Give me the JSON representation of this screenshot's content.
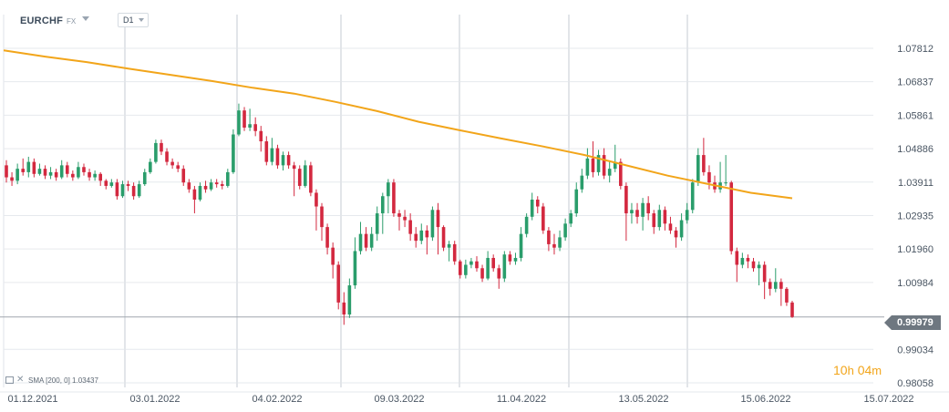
{
  "header": {
    "symbol": "EURCHF",
    "market": "FX",
    "timeframe": "D1"
  },
  "indicator": {
    "legend": "SMA [200,  0]  1.03437"
  },
  "countdown": {
    "hours": "10",
    "hours_unit": "h",
    "minutes": "04",
    "minutes_unit": "m"
  },
  "current_price": "0.99979",
  "colors": {
    "up": "#2a9d6b",
    "down": "#d3283f",
    "sma": "#f2a51a",
    "grid": "#e6e9ed",
    "price_line": "#a0a6ad",
    "price_tag": "#6e7780"
  },
  "chart_data": {
    "type": "candlestick",
    "symbol": "EURCHF",
    "timeframe": "D1",
    "ylim": [
      0.98058,
      1.08785
    ],
    "y_ticks": [
      "1.07812",
      "1.06837",
      "1.05861",
      "1.04886",
      "1.03911",
      "1.02935",
      "1.01960",
      "1.00984",
      "0.99034",
      "0.98058"
    ],
    "x_ticks": [
      "01.12.2021",
      "03.01.2022",
      "04.02.2022",
      "09.03.2022",
      "11.04.2022",
      "13.05.2022",
      "15.06.2022",
      "15.07.2022"
    ],
    "last_price": 0.99979,
    "indicator": {
      "name": "SMA",
      "period": 200,
      "shift": 0,
      "value": 1.03437
    },
    "sma_line": [
      1.0775,
      1.0757,
      1.0741,
      1.0722,
      1.0704,
      1.0686,
      1.0666,
      1.0649,
      1.0625,
      1.0598,
      1.0567,
      1.0542,
      1.0518,
      1.0495,
      1.047,
      1.044,
      1.041,
      1.0385,
      1.036,
      1.0344
    ],
    "candles": [
      [
        1.044,
        1.0405,
        1.0455,
        1.039
      ],
      [
        1.0405,
        1.0395,
        1.042,
        1.038
      ],
      [
        1.0395,
        1.043,
        1.0445,
        1.0385
      ],
      [
        1.043,
        1.042,
        1.046,
        1.041
      ],
      [
        1.042,
        1.045,
        1.0465,
        1.0405
      ],
      [
        1.045,
        1.0415,
        1.046,
        1.0405
      ],
      [
        1.0415,
        1.043,
        1.0445,
        1.041
      ],
      [
        1.043,
        1.041,
        1.044,
        1.04
      ],
      [
        1.041,
        1.042,
        1.0435,
        1.04
      ],
      [
        1.042,
        1.0405,
        1.043,
        1.0395
      ],
      [
        1.0405,
        1.044,
        1.0455,
        1.04
      ],
      [
        1.044,
        1.0415,
        1.045,
        1.0405
      ],
      [
        1.0415,
        1.0405,
        1.0425,
        1.0395
      ],
      [
        1.0405,
        1.0435,
        1.045,
        1.04
      ],
      [
        1.0435,
        1.042,
        1.0445,
        1.041
      ],
      [
        1.042,
        1.0405,
        1.043,
        1.0395
      ],
      [
        1.0405,
        1.0415,
        1.0425,
        1.0395
      ],
      [
        1.0415,
        1.0395,
        1.042,
        1.038
      ],
      [
        1.0395,
        1.038,
        1.04,
        1.037
      ],
      [
        1.038,
        1.039,
        1.04,
        1.0375
      ],
      [
        1.039,
        1.035,
        1.04,
        1.034
      ],
      [
        1.035,
        1.0385,
        1.0395,
        1.0345
      ],
      [
        1.0385,
        1.038,
        1.0395,
        1.0365
      ],
      [
        1.038,
        1.035,
        1.039,
        1.034
      ],
      [
        1.035,
        1.0385,
        1.0395,
        1.0345
      ],
      [
        1.0385,
        1.042,
        1.043,
        1.038
      ],
      [
        1.042,
        1.045,
        1.046,
        1.0415
      ],
      [
        1.045,
        1.0505,
        1.0515,
        1.0445
      ],
      [
        1.0505,
        1.048,
        1.0515,
        1.047
      ],
      [
        1.048,
        1.045,
        1.049,
        1.044
      ],
      [
        1.045,
        1.044,
        1.046,
        1.043
      ],
      [
        1.044,
        1.043,
        1.045,
        1.042
      ],
      [
        1.043,
        1.039,
        1.044,
        1.038
      ],
      [
        1.039,
        1.037,
        1.04,
        1.036
      ],
      [
        1.037,
        1.034,
        1.038,
        1.03
      ],
      [
        1.034,
        1.038,
        1.039,
        1.0335
      ],
      [
        1.038,
        1.037,
        1.0395,
        1.036
      ],
      [
        1.037,
        1.039,
        1.04,
        1.0365
      ],
      [
        1.039,
        1.0385,
        1.04,
        1.0375
      ],
      [
        1.0385,
        1.038,
        1.0395,
        1.037
      ],
      [
        1.038,
        1.042,
        1.043,
        1.0375
      ],
      [
        1.042,
        1.053,
        1.0545,
        1.0415
      ],
      [
        1.053,
        1.06,
        1.062,
        1.0525
      ],
      [
        1.06,
        1.055,
        1.061,
        1.054
      ],
      [
        1.055,
        1.056,
        1.0605,
        1.054
      ],
      [
        1.056,
        1.054,
        1.058,
        1.0525
      ],
      [
        1.054,
        1.051,
        1.0555,
        1.048
      ],
      [
        1.051,
        1.045,
        1.0525,
        1.044
      ],
      [
        1.045,
        1.049,
        1.052,
        1.044
      ],
      [
        1.049,
        1.044,
        1.05,
        1.043
      ],
      [
        1.044,
        1.047,
        1.048,
        1.0425
      ],
      [
        1.047,
        1.044,
        1.048,
        1.043
      ],
      [
        1.044,
        1.043,
        1.045,
        1.035
      ],
      [
        1.043,
        1.038,
        1.044,
        1.037
      ],
      [
        1.038,
        1.044,
        1.0455,
        1.0375
      ],
      [
        1.044,
        1.036,
        1.045,
        1.035
      ],
      [
        1.036,
        1.032,
        1.037,
        1.025
      ],
      [
        1.032,
        1.026,
        1.033,
        1.022
      ],
      [
        1.026,
        1.02,
        1.027,
        1.018
      ],
      [
        1.02,
        1.015,
        1.0215,
        1.011
      ],
      [
        1.015,
        1.004,
        1.016,
        1.002
      ],
      [
        1.004,
        1.0005,
        1.007,
        0.9975
      ],
      [
        1.0005,
        1.009,
        1.011,
        0.9995
      ],
      [
        1.009,
        1.019,
        1.023,
        1.008
      ],
      [
        1.019,
        1.024,
        1.0275,
        1.018
      ],
      [
        1.024,
        1.02,
        1.026,
        1.019
      ],
      [
        1.02,
        1.024,
        1.026,
        1.019
      ],
      [
        1.024,
        1.03,
        1.032,
        1.022
      ],
      [
        1.03,
        1.035,
        1.036,
        1.024
      ],
      [
        1.035,
        1.039,
        1.04,
        1.03
      ],
      [
        1.039,
        1.03,
        1.04,
        1.029
      ],
      [
        1.03,
        1.029,
        1.031,
        1.025
      ],
      [
        1.029,
        1.028,
        1.031,
        1.026
      ],
      [
        1.028,
        1.024,
        1.03,
        1.022
      ],
      [
        1.024,
        1.022,
        1.026,
        1.02
      ],
      [
        1.022,
        1.025,
        1.027,
        1.021
      ],
      [
        1.025,
        1.023,
        1.0265,
        1.018
      ],
      [
        1.023,
        1.031,
        1.032,
        1.022
      ],
      [
        1.031,
        1.026,
        1.033,
        1.018
      ],
      [
        1.026,
        1.02,
        1.0265,
        1.019
      ],
      [
        1.02,
        1.021,
        1.022,
        1.016
      ],
      [
        1.021,
        1.016,
        1.022,
        1.015
      ],
      [
        1.016,
        1.012,
        1.0165,
        1.011
      ],
      [
        1.012,
        1.015,
        1.0165,
        1.011
      ],
      [
        1.015,
        1.016,
        1.017,
        1.014
      ],
      [
        1.016,
        1.014,
        1.0175,
        1.013
      ],
      [
        1.014,
        1.011,
        1.015,
        1.01
      ],
      [
        1.011,
        1.017,
        1.019,
        1.0105
      ],
      [
        1.017,
        1.014,
        1.018,
        1.013
      ],
      [
        1.014,
        1.011,
        1.015,
        1.008
      ],
      [
        1.011,
        1.018,
        1.019,
        1.01
      ],
      [
        1.018,
        1.016,
        1.019,
        1.015
      ],
      [
        1.016,
        1.017,
        1.0185,
        1.015
      ],
      [
        1.017,
        1.024,
        1.026,
        1.016
      ],
      [
        1.024,
        1.029,
        1.03,
        1.023
      ],
      [
        1.029,
        1.034,
        1.036,
        1.028
      ],
      [
        1.034,
        1.032,
        1.035,
        1.03
      ],
      [
        1.032,
        1.025,
        1.033,
        1.024
      ],
      [
        1.025,
        1.021,
        1.026,
        1.019
      ],
      [
        1.021,
        1.02,
        1.024,
        1.018
      ],
      [
        1.02,
        1.023,
        1.025,
        1.019
      ],
      [
        1.023,
        1.027,
        1.0285,
        1.022
      ],
      [
        1.027,
        1.03,
        1.031,
        1.026
      ],
      [
        1.03,
        1.037,
        1.039,
        1.029
      ],
      [
        1.037,
        1.041,
        1.043,
        1.036
      ],
      [
        1.041,
        1.046,
        1.049,
        1.04
      ],
      [
        1.046,
        1.042,
        1.051,
        1.0405
      ],
      [
        1.042,
        1.047,
        1.0485,
        1.041
      ],
      [
        1.047,
        1.041,
        1.049,
        1.04
      ],
      [
        1.041,
        1.043,
        1.045,
        1.039
      ],
      [
        1.043,
        1.045,
        1.05,
        1.042
      ],
      [
        1.045,
        1.038,
        1.046,
        1.037
      ],
      [
        1.038,
        1.03,
        1.039,
        1.022
      ],
      [
        1.03,
        1.031,
        1.033,
        1.027
      ],
      [
        1.031,
        1.029,
        1.033,
        1.027
      ],
      [
        1.029,
        1.033,
        1.0345,
        1.025
      ],
      [
        1.033,
        1.03,
        1.035,
        1.028
      ],
      [
        1.03,
        1.026,
        1.031,
        1.024
      ],
      [
        1.026,
        1.031,
        1.0325,
        1.025
      ],
      [
        1.031,
        1.027,
        1.032,
        1.025
      ],
      [
        1.027,
        1.025,
        1.029,
        1.024
      ],
      [
        1.025,
        1.023,
        1.026,
        1.02
      ],
      [
        1.023,
        1.028,
        1.03,
        1.022
      ],
      [
        1.028,
        1.031,
        1.033,
        1.027
      ],
      [
        1.031,
        1.039,
        1.04,
        1.03
      ],
      [
        1.039,
        1.047,
        1.049,
        1.038
      ],
      [
        1.047,
        1.042,
        1.052,
        1.041
      ],
      [
        1.042,
        1.039,
        1.044,
        1.037
      ],
      [
        1.039,
        1.037,
        1.041,
        1.036
      ],
      [
        1.037,
        1.039,
        1.045,
        1.036
      ],
      [
        1.039,
        1.039,
        1.047,
        1.038
      ],
      [
        1.039,
        1.019,
        1.0395,
        1.018
      ],
      [
        1.019,
        1.015,
        1.02,
        1.01
      ],
      [
        1.015,
        1.017,
        1.0185,
        1.014
      ],
      [
        1.017,
        1.016,
        1.018,
        1.014
      ],
      [
        1.016,
        1.014,
        1.017,
        1.013
      ],
      [
        1.014,
        1.015,
        1.016,
        1.009
      ],
      [
        1.015,
        1.01,
        1.016,
        1.005
      ],
      [
        1.01,
        1.008,
        1.011,
        1.006
      ],
      [
        1.008,
        1.01,
        1.014,
        1.007
      ],
      [
        1.01,
        1.008,
        1.011,
        1.003
      ],
      [
        1.008,
        1.004,
        1.0085,
        1.003
      ],
      [
        1.004,
        0.9998,
        1.0045,
        0.9995
      ]
    ]
  }
}
